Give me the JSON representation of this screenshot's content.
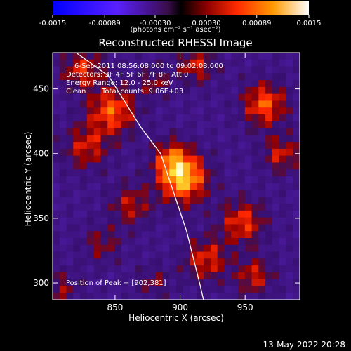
{
  "chart_data": {
    "type": "heatmap",
    "title": "Reconstructed RHESSI Image",
    "xlabel": "Heliocentric X (arcsec)",
    "ylabel": "Heliocentric Y (arcsec)",
    "xlim": [
      802,
      992
    ],
    "ylim": [
      287,
      478
    ],
    "xticks": [
      850,
      900,
      950
    ],
    "yticks": [
      300,
      350,
      400,
      450
    ],
    "colorbar": {
      "ticks": [
        "-0.0015",
        "-0.00089",
        "-0.00030",
        "0.00030",
        "0.00089",
        "0.0015"
      ],
      "range": [
        -0.0015,
        0.0015
      ],
      "units_label": "(photons cm⁻² s⁻¹ asec⁻²)"
    },
    "peak": {
      "x": 902,
      "y": 381
    },
    "annotations": {
      "time": "6-Sep-2011 08:56:08.000 to 09:02:08.000",
      "detectors": "Detectors: 3F 4F 5F 6F 7F 8F, Att 0",
      "energy": "Energy Range: 12.0 - 25.0 keV",
      "method": "Clean",
      "counts": "Total counts: 9.06E+03",
      "peak_text": "Position of Peak = [902,381]"
    },
    "colors": {
      "negative": "#2b2bff",
      "zero": "#000000",
      "positive": "#ff2a00",
      "peak": "#ffffff"
    }
  },
  "footer": {
    "timestamp": "13-May-2022 20:28"
  }
}
